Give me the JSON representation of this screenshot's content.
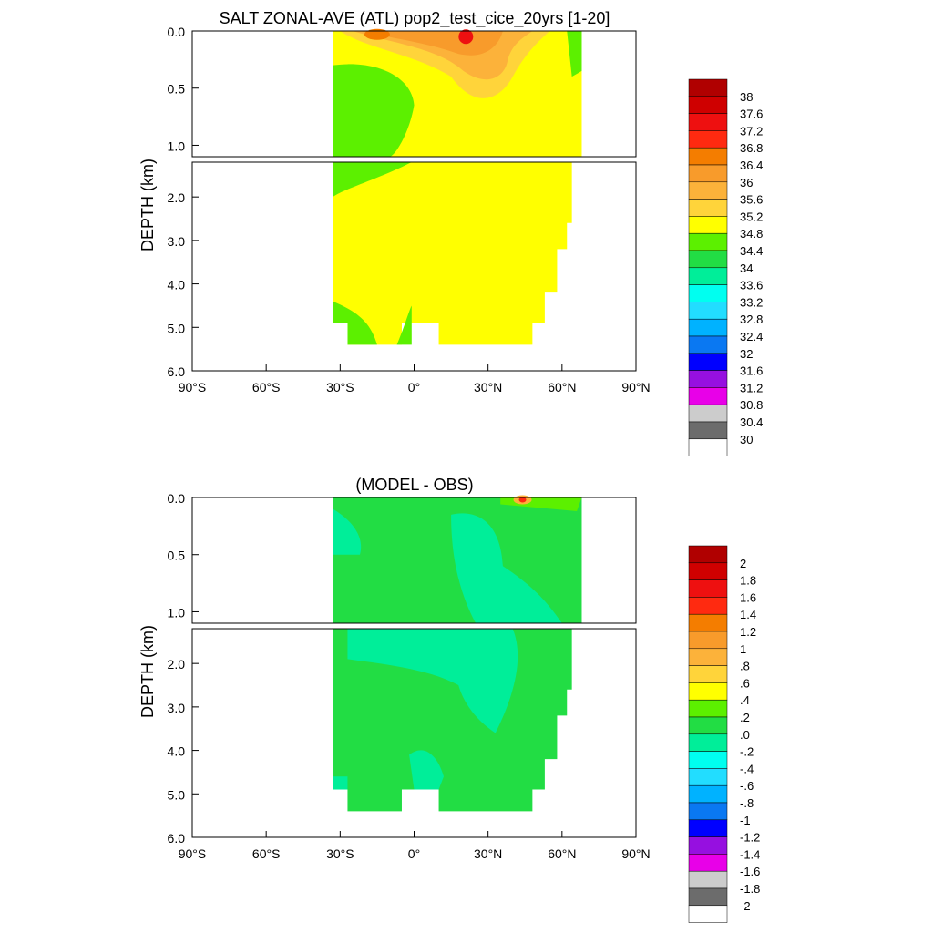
{
  "chart_data": [
    {
      "type": "heatmap",
      "title": "SALT ZONAL-AVE (ATL) pop2_test_cice_20yrs [1-20]",
      "ylabel": "DEPTH (km)",
      "x_ticks": [
        "90°S",
        "60°S",
        "30°S",
        "0°",
        "30°N",
        "60°N",
        "90°N"
      ],
      "x_tick_values": [
        -90,
        -60,
        -30,
        0,
        30,
        60,
        90
      ],
      "y_ticks_upper": [
        "0.0",
        "0.5",
        "1.0"
      ],
      "y_ticks_upper_values": [
        0,
        0.5,
        1.0
      ],
      "y_ticks_lower": [
        "2.0",
        "3.0",
        "4.0",
        "5.0",
        "6.0"
      ],
      "y_ticks_lower_values": [
        2,
        3,
        4,
        5,
        6
      ],
      "upper_panel_ylim": [
        0,
        1.1
      ],
      "lower_panel_ylim": [
        1.2,
        6
      ],
      "xlim": [
        -90,
        90
      ],
      "colorbar_labels": [
        "38",
        "37.6",
        "37.2",
        "36.8",
        "36.4",
        "36",
        "35.6",
        "35.2",
        "34.8",
        "34.4",
        "34",
        "33.6",
        "33.2",
        "32.8",
        "32.4",
        "32",
        "31.6",
        "31.2",
        "30.8",
        "30.4",
        "30"
      ],
      "colorbar_colors": [
        "#b00000",
        "#cf0000",
        "#ee1010",
        "#ff2a10",
        "#f47d00",
        "#f89b2b",
        "#fcb23a",
        "#ffd43a",
        "#ffff00",
        "#5cf000",
        "#22dd44",
        "#00ee99",
        "#00fff0",
        "#22ddff",
        "#00b2ff",
        "#0a78f2",
        "#0000ff",
        "#9610e0",
        "#e800e8",
        "#cccccc",
        "#6c6c6c",
        "#ffffff"
      ],
      "regions": [
        {
          "value": "34.8-35.2",
          "note": "upper ocean north of equator and deep basin 30S-65N"
        },
        {
          "value": "34.4-34.8",
          "note": "southern intermediate layer 30S-5S, 0.3-1.5 km; bottom water near seafloor"
        },
        {
          "value": "35.6-37.2",
          "note": "subtropical surface maxima near 15S and 20N"
        }
      ]
    },
    {
      "type": "heatmap",
      "title": "(MODEL - OBS)",
      "ylabel": "DEPTH (km)",
      "x_ticks": [
        "90°S",
        "60°S",
        "30°S",
        "0°",
        "30°N",
        "60°N",
        "90°N"
      ],
      "x_tick_values": [
        -90,
        -60,
        -30,
        0,
        30,
        60,
        90
      ],
      "y_ticks_upper": [
        "0.0",
        "0.5",
        "1.0"
      ],
      "y_ticks_upper_values": [
        0,
        0.5,
        1.0
      ],
      "y_ticks_lower": [
        "2.0",
        "3.0",
        "4.0",
        "5.0",
        "6.0"
      ],
      "y_ticks_lower_values": [
        2,
        3,
        4,
        5,
        6
      ],
      "upper_panel_ylim": [
        0,
        1.1
      ],
      "lower_panel_ylim": [
        1.2,
        6
      ],
      "xlim": [
        -90,
        90
      ],
      "colorbar_labels": [
        "2",
        "1.8",
        "1.6",
        "1.4",
        "1.2",
        "1",
        ".8",
        ".6",
        ".4",
        ".2",
        ".0",
        "-.2",
        "-.4",
        "-.6",
        "-.8",
        "-1",
        "-1.2",
        "-1.4",
        "-1.6",
        "-1.8",
        "-2"
      ],
      "colorbar_colors": [
        "#b00000",
        "#cf0000",
        "#ee1010",
        "#ff2a10",
        "#f47d00",
        "#f89b2b",
        "#fcb23a",
        "#ffd43a",
        "#ffff00",
        "#5cf000",
        "#22dd44",
        "#00ee99",
        "#00fff0",
        "#22ddff",
        "#00b2ff",
        "#0a78f2",
        "#0000ff",
        "#9610e0",
        "#e800e8",
        "#cccccc",
        "#6c6c6c",
        "#ffffff"
      ],
      "regions": [
        {
          "value": "0.0-0.2",
          "note": "bulk of basin"
        },
        {
          "value": "-0.2-0.0",
          "note": "patches 30S-20S near surface, 15N-35N upper ocean, 1.2-2 km band"
        },
        {
          "value": "0.4-1.0",
          "note": "small surface bias near 40N"
        }
      ]
    }
  ]
}
